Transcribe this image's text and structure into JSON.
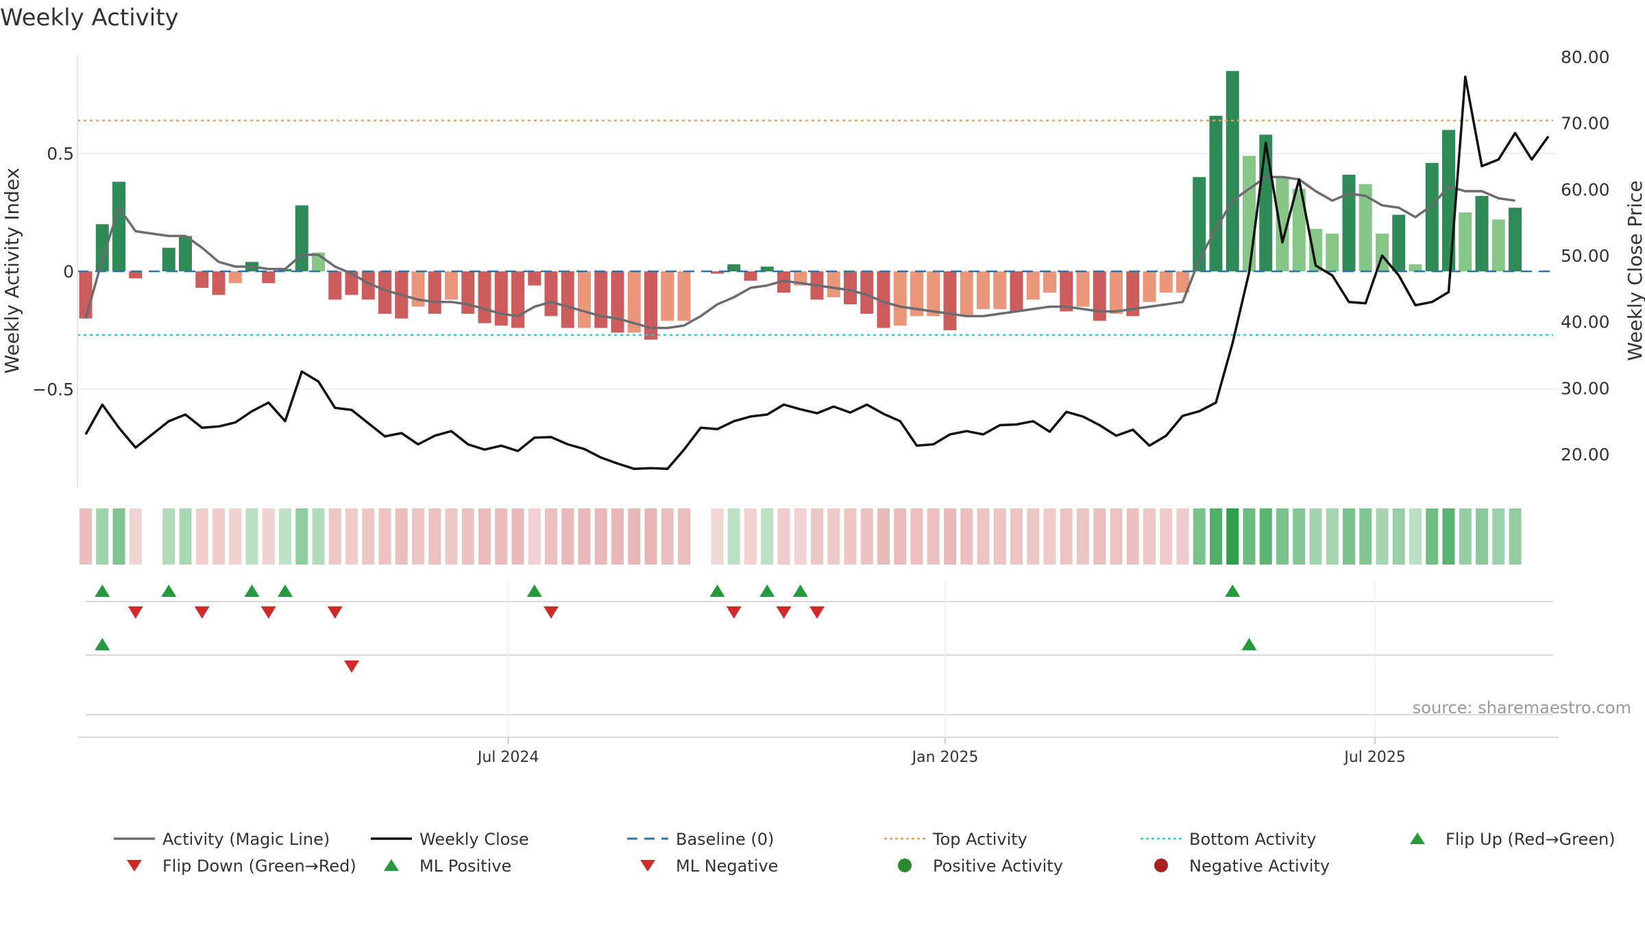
{
  "chart_data": {
    "type": "bar",
    "title": "Weekly Activity",
    "ylabel_left": "Weekly Activity Index",
    "ylabel_right": "Weekly Close Price",
    "source": "source: sharemaestro.com",
    "x_start": "2024-01-05",
    "x_ticks": [
      {
        "date": "2024-07-01",
        "label": "Jul 2024"
      },
      {
        "date": "2025-01-01",
        "label": "Jan 2025"
      },
      {
        "date": "2025-07-01",
        "label": "Jul 2025"
      }
    ],
    "left_axis": {
      "ylim": [
        -0.92,
        0.92
      ],
      "ticks": [
        {
          "v": 0.5,
          "label": "0.5"
        },
        {
          "v": 0,
          "label": "0"
        },
        {
          "v": -0.5,
          "label": "−0.5"
        }
      ]
    },
    "right_axis": {
      "ylim": [
        13.5,
        81.5
      ],
      "ticks": [
        {
          "v": 80,
          "label": "80.00"
        },
        {
          "v": 70,
          "label": "70.00"
        },
        {
          "v": 60,
          "label": "60.00"
        },
        {
          "v": 50,
          "label": "50.00"
        },
        {
          "v": 40,
          "label": "40.00"
        },
        {
          "v": 30,
          "label": "30.00"
        },
        {
          "v": 20,
          "label": "20.00"
        }
      ]
    },
    "top_activity": 0.64,
    "bottom_activity": -0.27,
    "activity": [
      -0.2,
      0.2,
      0.38,
      -0.03,
      0,
      0.1,
      0.15,
      -0.07,
      -0.1,
      -0.05,
      0.04,
      -0.05,
      0.01,
      0.28,
      0.08,
      -0.12,
      -0.1,
      -0.12,
      -0.18,
      -0.2,
      -0.15,
      -0.18,
      -0.12,
      -0.18,
      -0.22,
      -0.23,
      -0.24,
      -0.06,
      -0.19,
      -0.24,
      -0.24,
      -0.24,
      -0.26,
      -0.26,
      -0.29,
      -0.21,
      -0.21,
      0,
      -0.01,
      0.03,
      -0.04,
      0.02,
      -0.09,
      -0.06,
      -0.12,
      -0.11,
      -0.14,
      -0.18,
      -0.24,
      -0.23,
      -0.19,
      -0.19,
      -0.25,
      -0.19,
      -0.16,
      -0.16,
      -0.17,
      -0.12,
      -0.09,
      -0.17,
      -0.15,
      -0.21,
      -0.18,
      -0.19,
      -0.13,
      -0.09,
      -0.09,
      0.4,
      0.66,
      0.85,
      0.49,
      0.58,
      0.4,
      0.35,
      0.18,
      0.16,
      0.41,
      0.37,
      0.16,
      0.24,
      0.03,
      0.46,
      0.6,
      0.25,
      0.32,
      0.22,
      0.27
    ],
    "bar_shade": [
      "d",
      "d",
      "d",
      "d",
      "d",
      "d",
      "d",
      "d",
      "d",
      "l",
      "d",
      "d",
      "d",
      "d",
      "l",
      "d",
      "d",
      "d",
      "d",
      "d",
      "l",
      "d",
      "l",
      "d",
      "d",
      "d",
      "d",
      "d",
      "d",
      "d",
      "l",
      "d",
      "d",
      "l",
      "d",
      "l",
      "l",
      "d",
      "d",
      "d",
      "d",
      "d",
      "d",
      "l",
      "d",
      "l",
      "d",
      "d",
      "d",
      "l",
      "l",
      "l",
      "d",
      "l",
      "l",
      "l",
      "d",
      "l",
      "l",
      "d",
      "l",
      "d",
      "l",
      "d",
      "l",
      "l",
      "l",
      "d",
      "d",
      "d",
      "l",
      "d",
      "l",
      "l",
      "l",
      "l",
      "d",
      "l",
      "l",
      "d",
      "l",
      "d",
      "d",
      "l",
      "d",
      "l",
      "d"
    ],
    "magic_line": [
      -0.2,
      0.05,
      0.27,
      0.17,
      0.16,
      0.15,
      0.15,
      0.1,
      0.04,
      0.02,
      0.02,
      0.01,
      0.01,
      0.07,
      0.07,
      0.02,
      -0.01,
      -0.05,
      -0.08,
      -0.1,
      -0.12,
      -0.13,
      -0.13,
      -0.14,
      -0.16,
      -0.18,
      -0.19,
      -0.15,
      -0.13,
      -0.15,
      -0.17,
      -0.19,
      -0.2,
      -0.22,
      -0.24,
      -0.24,
      -0.23,
      -0.19,
      -0.14,
      -0.11,
      -0.07,
      -0.06,
      -0.04,
      -0.05,
      -0.06,
      -0.07,
      -0.08,
      -0.1,
      -0.13,
      -0.15,
      -0.16,
      -0.17,
      -0.18,
      -0.19,
      -0.19,
      -0.18,
      -0.17,
      -0.16,
      -0.15,
      -0.15,
      -0.16,
      -0.17,
      -0.17,
      -0.16,
      -0.15,
      -0.14,
      -0.13,
      0.05,
      0.18,
      0.3,
      0.35,
      0.4,
      0.4,
      0.39,
      0.34,
      0.3,
      0.33,
      0.32,
      0.28,
      0.27,
      0.23,
      0.28,
      0.36,
      0.34,
      0.34,
      0.31,
      0.3
    ],
    "close_prices": [
      23,
      27.5,
      24,
      21,
      23,
      25,
      26,
      24,
      24.2,
      24.8,
      26.5,
      27.8,
      25,
      32.5,
      31,
      27,
      26.7,
      24.7,
      22.7,
      23.2,
      21.5,
      22.8,
      23.5,
      21.5,
      20.7,
      21.3,
      20.5,
      22.5,
      22.6,
      21.5,
      20.8,
      19.5,
      18.6,
      17.8,
      17.9,
      17.8,
      20.7,
      24,
      23.8,
      25,
      25.7,
      26,
      27.5,
      26.8,
      26.2,
      27.2,
      26.3,
      27.5,
      26.1,
      25,
      21.3,
      21.5,
      23,
      23.5,
      23,
      24.4,
      24.5,
      25,
      23.4,
      26.4,
      25.7,
      24.4,
      22.8,
      23.7,
      21.3,
      22.8,
      25.8,
      26.5,
      27.8,
      36.8,
      47.5,
      67,
      52,
      61.5,
      48.5,
      47,
      43,
      42.8,
      50,
      47,
      42.5,
      43,
      44.5,
      77,
      63.5,
      64.5,
      68.5,
      64.5,
      68
    ],
    "flip_up": [
      1,
      5,
      10,
      12,
      27,
      38,
      41,
      43,
      69
    ],
    "flip_down": [
      3,
      7,
      11,
      15,
      28,
      39,
      42,
      44
    ],
    "ml_positive": [
      1,
      70
    ],
    "ml_negative": [
      16
    ],
    "legend": [
      {
        "label": "Activity (Magic Line)",
        "symbol": "line",
        "color": "#6b6b70"
      },
      {
        "label": "Weekly Close",
        "symbol": "line",
        "color": "#111111"
      },
      {
        "label": "Baseline (0)",
        "symbol": "dashed",
        "color": "#2f72a6"
      },
      {
        "label": "Top Activity",
        "symbol": "dotted",
        "color": "#e2a35a"
      },
      {
        "label": "Bottom Activity",
        "symbol": "dotted",
        "color": "#2fc5c9"
      },
      {
        "label": "Flip Up (Red→Green)",
        "symbol": "tri-up",
        "color": "#249a3d"
      },
      {
        "label": "Flip Down (Green→Red)",
        "symbol": "tri-down",
        "color": "#d02a2a"
      },
      {
        "label": "ML Positive",
        "symbol": "tri-up",
        "color": "#249a3d"
      },
      {
        "label": "ML Negative",
        "symbol": "tri-down",
        "color": "#d02a2a"
      },
      {
        "label": "Positive Activity",
        "symbol": "dot",
        "color": "#2a8a2a"
      },
      {
        "label": "Negative Activity",
        "symbol": "dot",
        "color": "#a82020"
      }
    ],
    "colors": {
      "pos_dark": "#2e8b57",
      "pos_light": "#86c788",
      "neg_dark": "#cd5c5c",
      "neg_light": "#e9967a",
      "magic_line": "#6b6b70",
      "close": "#111111",
      "baseline": "#2f72a6",
      "top": "#e2a35a",
      "bottom": "#2fc5c9",
      "up_marker": "#249a3d",
      "down_marker": "#d02a2a"
    }
  }
}
